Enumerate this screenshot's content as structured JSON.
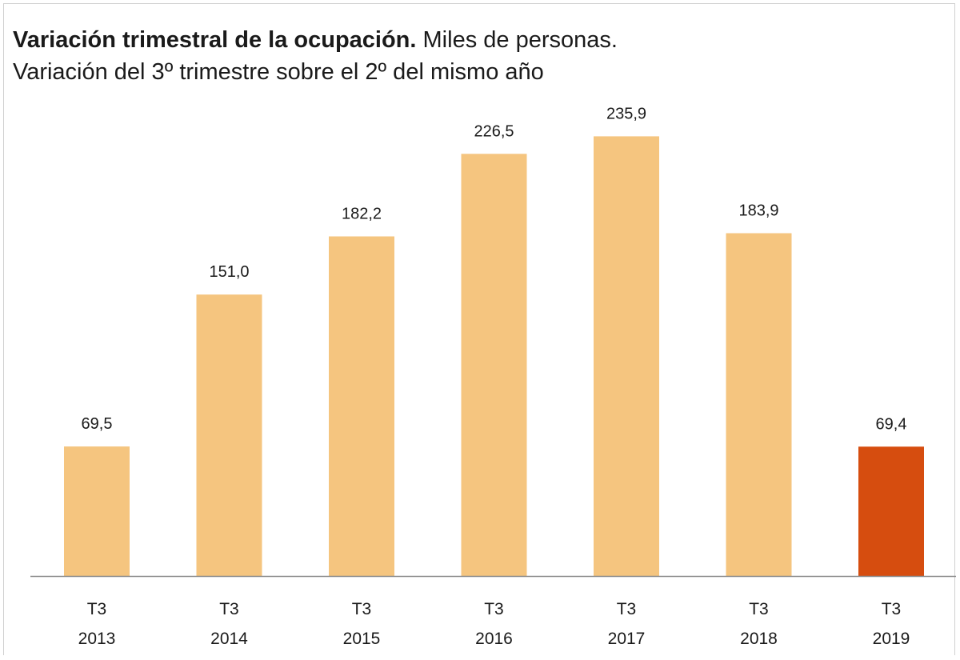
{
  "chart_data": {
    "type": "bar",
    "title_bold": "Variación trimestral de la ocupación.",
    "title_rest": " Miles de personas.",
    "subtitle": "Variación del 3º trimestre sobre el 2º del mismo año",
    "categories": [
      {
        "quarter": "T3",
        "year": "2013"
      },
      {
        "quarter": "T3",
        "year": "2014"
      },
      {
        "quarter": "T3",
        "year": "2015"
      },
      {
        "quarter": "T3",
        "year": "2016"
      },
      {
        "quarter": "T3",
        "year": "2017"
      },
      {
        "quarter": "T3",
        "year": "2018"
      },
      {
        "quarter": "T3",
        "year": "2019"
      }
    ],
    "values": [
      69.5,
      151.0,
      182.2,
      226.5,
      235.9,
      183.9,
      69.4
    ],
    "value_labels": [
      "69,5",
      "151,0",
      "182,2",
      "226,5",
      "235,9",
      "183,9",
      "69,4"
    ],
    "ylim": [
      0,
      250
    ],
    "grid": false,
    "legend": "none",
    "colors": {
      "default_bar": "#F5C57F",
      "highlight_bar": "#D64D0F",
      "axis": "#8a8a8a"
    },
    "highlight_index": 6
  }
}
